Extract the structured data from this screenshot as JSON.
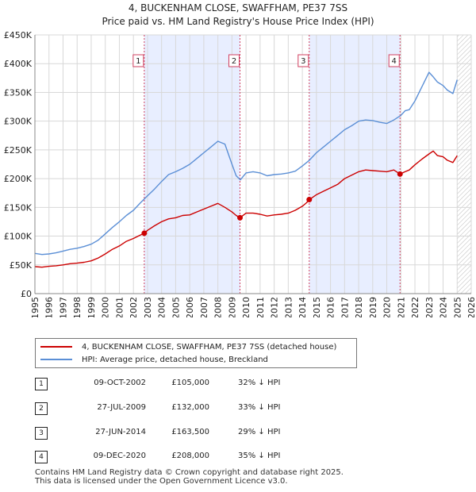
{
  "chart_data": {
    "type": "line",
    "title": "4, BUCKENHAM CLOSE, SWAFFHAM, PE37 7SS",
    "subtitle": "Price paid vs. HM Land Registry's House Price Index (HPI)",
    "xlabel": "",
    "ylabel": "",
    "xlim": [
      1995,
      2026
    ],
    "ylim": [
      0,
      450000
    ],
    "x_ticks": [
      "1995",
      "1996",
      "1997",
      "1998",
      "1999",
      "2000",
      "2001",
      "2002",
      "2003",
      "2004",
      "2005",
      "2006",
      "2007",
      "2008",
      "2009",
      "2010",
      "2011",
      "2012",
      "2013",
      "2014",
      "2015",
      "2016",
      "2017",
      "2018",
      "2019",
      "2020",
      "2021",
      "2022",
      "2023",
      "2024",
      "2025",
      "2026"
    ],
    "y_ticks": [
      {
        "value": 0,
        "label": "£0"
      },
      {
        "value": 50000,
        "label": "£50K"
      },
      {
        "value": 100000,
        "label": "£100K"
      },
      {
        "value": 150000,
        "label": "£150K"
      },
      {
        "value": 200000,
        "label": "£200K"
      },
      {
        "value": 250000,
        "label": "£250K"
      },
      {
        "value": 300000,
        "label": "£300K"
      },
      {
        "value": 350000,
        "label": "£350K"
      },
      {
        "value": 400000,
        "label": "£400K"
      },
      {
        "value": 450000,
        "label": "£450K"
      }
    ],
    "ownership_periods": [
      [
        2002.77,
        2009.57
      ],
      [
        2014.49,
        2020.94
      ]
    ],
    "projection_start": 2025.0,
    "series": [
      {
        "name": "4, BUCKENHAM CLOSE, SWAFFHAM, PE37 7SS (detached house)",
        "color": "#cc0000",
        "x": [
          1995.0,
          1995.5,
          1996.0,
          1996.5,
          1997.0,
          1997.5,
          1998.0,
          1998.5,
          1999.0,
          1999.5,
          2000.0,
          2000.5,
          2001.0,
          2001.5,
          2002.0,
          2002.5,
          2002.77,
          2003.0,
          2003.5,
          2004.0,
          2004.5,
          2005.0,
          2005.5,
          2006.0,
          2006.5,
          2007.0,
          2007.5,
          2008.0,
          2008.5,
          2009.0,
          2009.3,
          2009.57,
          2010.0,
          2010.5,
          2011.0,
          2011.5,
          2012.0,
          2012.5,
          2013.0,
          2013.5,
          2014.0,
          2014.3,
          2014.49,
          2015.0,
          2015.5,
          2016.0,
          2016.5,
          2017.0,
          2017.5,
          2018.0,
          2018.5,
          2019.0,
          2019.5,
          2020.0,
          2020.5,
          2020.94,
          2021.3,
          2021.6,
          2022.0,
          2022.5,
          2023.0,
          2023.3,
          2023.6,
          2024.0,
          2024.3,
          2024.7,
          2025.0
        ],
        "values": [
          47000,
          46000,
          47500,
          48500,
          50000,
          52000,
          53000,
          54500,
          57000,
          62000,
          69000,
          77000,
          83000,
          91000,
          96000,
          102000,
          105000,
          110000,
          118000,
          125000,
          130000,
          132000,
          136000,
          137000,
          142000,
          147000,
          152000,
          157000,
          150000,
          142000,
          136000,
          132000,
          140000,
          140000,
          138000,
          135000,
          137000,
          138000,
          140000,
          145000,
          152000,
          158000,
          163500,
          172000,
          178000,
          184000,
          190000,
          200000,
          206000,
          212000,
          215000,
          214000,
          213000,
          212000,
          215000,
          208000,
          212000,
          215000,
          224000,
          234000,
          243000,
          248000,
          240000,
          238000,
          232000,
          228000,
          240000
        ]
      },
      {
        "name": "HPI: Average price, detached house, Breckland",
        "color": "#5b8fd6",
        "x": [
          1995.0,
          1995.5,
          1996.0,
          1996.5,
          1997.0,
          1997.5,
          1998.0,
          1998.5,
          1999.0,
          1999.5,
          2000.0,
          2000.5,
          2001.0,
          2001.5,
          2002.0,
          2002.5,
          2003.0,
          2003.5,
          2004.0,
          2004.5,
          2005.0,
          2005.5,
          2006.0,
          2006.5,
          2007.0,
          2007.5,
          2008.0,
          2008.5,
          2009.0,
          2009.3,
          2009.6,
          2010.0,
          2010.5,
          2011.0,
          2011.5,
          2012.0,
          2012.5,
          2013.0,
          2013.5,
          2014.0,
          2014.5,
          2015.0,
          2015.5,
          2016.0,
          2016.5,
          2017.0,
          2017.5,
          2018.0,
          2018.5,
          2019.0,
          2019.5,
          2020.0,
          2020.5,
          2021.0,
          2021.3,
          2021.6,
          2022.0,
          2022.5,
          2023.0,
          2023.3,
          2023.6,
          2024.0,
          2024.3,
          2024.7,
          2025.0
        ],
        "values": [
          70000,
          68000,
          69000,
          71000,
          74000,
          77000,
          79000,
          82000,
          86000,
          93000,
          104000,
          115000,
          125000,
          136000,
          145000,
          158000,
          170000,
          182000,
          195000,
          207000,
          212000,
          218000,
          225000,
          235000,
          245000,
          255000,
          265000,
          260000,
          225000,
          205000,
          198000,
          210000,
          212000,
          210000,
          205000,
          207000,
          208000,
          210000,
          213000,
          222000,
          232000,
          245000,
          255000,
          265000,
          275000,
          285000,
          292000,
          300000,
          302000,
          301000,
          298000,
          296000,
          302000,
          310000,
          318000,
          320000,
          335000,
          360000,
          385000,
          377000,
          368000,
          362000,
          354000,
          348000,
          372000
        ]
      }
    ],
    "sales": [
      {
        "label": "1",
        "x": 2002.77,
        "value": 105000
      },
      {
        "label": "2",
        "x": 2009.57,
        "value": 132000
      },
      {
        "label": "3",
        "x": 2014.49,
        "value": 163500
      },
      {
        "label": "4",
        "x": 2020.94,
        "value": 208000
      }
    ],
    "colors": {
      "price_line": "#cc0000",
      "hpi_line": "#5b8fd6",
      "shade": "#e8eeff",
      "grid": "#d8d8d8",
      "marker_line": "#d04060",
      "hatch": "#bbbbbb"
    }
  },
  "legend": {
    "price_paid": "4, BUCKENHAM CLOSE, SWAFFHAM, PE37 7SS (detached house)",
    "hpi": "HPI: Average price, detached house, Breckland"
  },
  "transactions": [
    {
      "num": "1",
      "date": "09-OCT-2002",
      "price": "£105,000",
      "hpi": "32% ↓ HPI"
    },
    {
      "num": "2",
      "date": "27-JUL-2009",
      "price": "£132,000",
      "hpi": "33% ↓ HPI"
    },
    {
      "num": "3",
      "date": "27-JUN-2014",
      "price": "£163,500",
      "hpi": "29% ↓ HPI"
    },
    {
      "num": "4",
      "date": "09-DEC-2020",
      "price": "£208,000",
      "hpi": "35% ↓ HPI"
    }
  ],
  "footer": {
    "line1": "Contains HM Land Registry data © Crown copyright and database right 2025.",
    "line2": "This data is licensed under the Open Government Licence v3.0."
  }
}
